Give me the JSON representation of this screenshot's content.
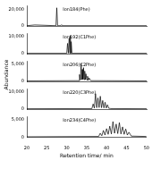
{
  "chart_data": [
    {
      "type": "line",
      "annotation": "Ion184(Phe)",
      "color": "#000000",
      "tick_labels": "y",
      "x": [
        20,
        22,
        27.3,
        27.5,
        27.7,
        28.5,
        28.7,
        28.9,
        35,
        50
      ],
      "values": [
        300,
        1200,
        300,
        22000,
        300,
        300,
        1500,
        300,
        300,
        300
      ],
      "xlim": [
        20,
        50
      ],
      "ylim": [
        0,
        25000
      ],
      "yticks": [
        0,
        20000
      ]
    },
    {
      "type": "line",
      "annotation": "Ion192(C1Phe)",
      "color": "#000000",
      "tick_labels": "y",
      "x": [
        20,
        29.9,
        30.0,
        30.2,
        30.4,
        30.6,
        30.75,
        30.9,
        31.0,
        31.1,
        31.3,
        35,
        50
      ],
      "values": [
        200,
        200,
        300,
        6000,
        300,
        9000,
        300,
        10500,
        300,
        7000,
        200,
        200,
        200
      ],
      "xlim": [
        20,
        50
      ],
      "ylim": [
        0,
        12000
      ],
      "yticks": [
        0,
        10000
      ]
    },
    {
      "type": "line",
      "annotation": "Ion206(C2Phe)",
      "color": "#000000",
      "tick_labels": "y",
      "ylabel": "Abundance",
      "x": [
        20,
        33.0,
        33.2,
        33.4,
        33.6,
        33.75,
        33.9,
        34.05,
        34.2,
        34.35,
        34.5,
        34.65,
        34.8,
        35.0,
        35.2,
        35.4,
        35.6,
        36.0,
        50
      ],
      "values": [
        150,
        200,
        2000,
        400,
        5200,
        500,
        3500,
        600,
        4000,
        500,
        3000,
        500,
        2200,
        400,
        1500,
        300,
        1000,
        200,
        150
      ],
      "xlim": [
        20,
        50
      ],
      "ylim": [
        0,
        6000
      ],
      "yticks": [
        0,
        5000
      ]
    },
    {
      "type": "line",
      "annotation": "Ion220(C3Phe)",
      "color": "#000000",
      "tick_labels": "y",
      "x": [
        20,
        36.3,
        36.6,
        36.9,
        37.2,
        37.5,
        37.8,
        38.1,
        38.4,
        38.7,
        39.0,
        39.3,
        39.6,
        39.9,
        40.2,
        40.5,
        41.0,
        50
      ],
      "values": [
        200,
        300,
        3000,
        600,
        9000,
        800,
        6500,
        900,
        7500,
        800,
        5000,
        700,
        4000,
        600,
        2500,
        500,
        300,
        200
      ],
      "xlim": [
        20,
        50
      ],
      "ylim": [
        0,
        12000
      ],
      "yticks": [
        0,
        10000
      ]
    },
    {
      "type": "line",
      "annotation": "Ion234(C4Phe)",
      "color": "#000000",
      "xlabel": "Retention time/ min",
      "x": [
        20,
        38.0,
        38.4,
        38.8,
        39.2,
        39.6,
        40.0,
        40.4,
        40.8,
        41.2,
        41.6,
        42.0,
        42.4,
        42.8,
        43.2,
        43.6,
        44.0,
        44.4,
        44.8,
        45.2,
        45.6,
        46.2,
        50
      ],
      "values": [
        200,
        300,
        1200,
        500,
        2000,
        700,
        2500,
        900,
        3200,
        1000,
        4500,
        1200,
        3800,
        1100,
        4200,
        1000,
        3000,
        900,
        2400,
        700,
        1500,
        400,
        300
      ],
      "xlim": [
        20,
        50
      ],
      "xticks": [
        20,
        25,
        30,
        35,
        40,
        45,
        50
      ],
      "ylim": [
        0,
        6000
      ],
      "yticks": [
        0,
        5000
      ]
    }
  ]
}
